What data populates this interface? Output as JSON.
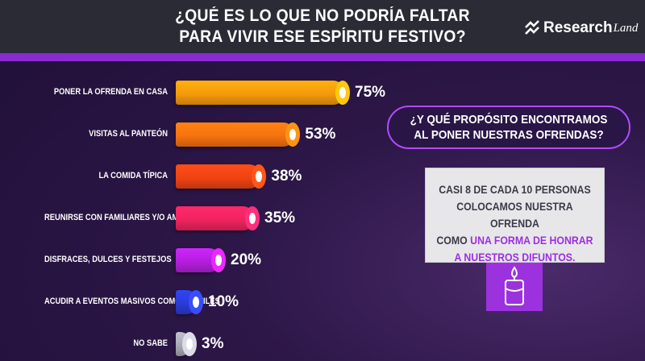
{
  "header": {
    "title_line1": "¿QUÉ ES LO QUE NO PODRÍA FALTAR",
    "title_line2": "PARA VIVIR ESE ESPÍRITU FESTIVO?",
    "logo_main": "Research",
    "logo_script": "Land"
  },
  "chart_data": {
    "type": "bar",
    "orientation": "horizontal",
    "title": "¿QUÉ ES LO QUE NO PODRÍA FALTAR PARA VIVIR ESE ESPÍRITU FESTIVO?",
    "categories": [
      "PONER LA OFRENDA EN CASA",
      "VISITAS AL PANTEÓN",
      "LA COMIDA TÍPICA",
      "REUNIRSE CON FAMILIARES Y/O AMIGOS",
      "DISFRACES, DULCES Y FESTEJOS",
      "ACUDIR A EVENTOS MASIVOS COMO DESFILES",
      "NO SABE"
    ],
    "values": [
      75,
      53,
      38,
      35,
      20,
      10,
      3
    ],
    "value_labels": [
      "75%",
      "53%",
      "38%",
      "35%",
      "20%",
      "10%",
      "3%"
    ],
    "bar_colors": [
      "#f59a0c",
      "#f6720f",
      "#f04313",
      "#f0245f",
      "#b41fdc",
      "#2b3bd6",
      "#a9a9b3"
    ],
    "xlim": [
      0,
      100
    ],
    "unit": "%"
  },
  "sidebar": {
    "question": "¿Y QUÉ PROPÓSITO ENCONTRAMOS AL PONER NUESTRAS OFRENDAS?",
    "question_line1": "¿Y QUÉ PROPÓSITO ENCONTRAMOS",
    "question_line2": "AL PONER NUESTRAS OFRENDAS?",
    "answer_line1": "CASI 8 DE CADA 10 PERSONAS",
    "answer_line2": "COLOCAMOS NUESTRA OFRENDA",
    "answer_line3_plain": "COMO ",
    "answer_line3_highlight": "UNA FORMA DE HONRAR",
    "answer_line4_highlight": "A NUESTROS DIFUNTOS.",
    "icon": "candle-icon"
  }
}
